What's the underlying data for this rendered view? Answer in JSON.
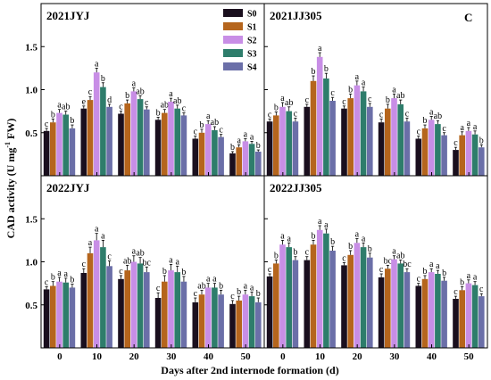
{
  "chart_data": {
    "type": "bar",
    "corner_label": "C",
    "xlabel": "Days after 2nd internode formation (d)",
    "ylabel": "CAD activity (U mg",
    "ylabel_sup": "-1",
    "ylabel_tail": " FW)",
    "ylim": [
      0,
      2.0
    ],
    "yticks": [
      "0.5",
      "1.0",
      "1.5"
    ],
    "categories": [
      "0",
      "10",
      "20",
      "30",
      "40",
      "50"
    ],
    "series_names": [
      "S0",
      "S1",
      "S2",
      "S3",
      "S4"
    ],
    "series_colors": [
      "#1a0f1e",
      "#b5651d",
      "#c88ee6",
      "#2e7d6b",
      "#6b6fa8"
    ],
    "legend_position": "top-right of first panel",
    "panels": [
      {
        "title": "2021JYJ",
        "values": [
          [
            0.52,
            0.78,
            0.72,
            0.65,
            0.43,
            0.26
          ],
          [
            0.62,
            0.88,
            0.84,
            0.73,
            0.5,
            0.33
          ],
          [
            0.73,
            1.2,
            0.98,
            0.86,
            0.6,
            0.4
          ],
          [
            0.71,
            1.03,
            0.89,
            0.78,
            0.53,
            0.37
          ],
          [
            0.55,
            0.8,
            0.77,
            0.7,
            0.45,
            0.28
          ]
        ],
        "errors": [
          [
            0.03,
            0.03,
            0.03,
            0.03,
            0.03,
            0.02
          ],
          [
            0.04,
            0.04,
            0.04,
            0.04,
            0.04,
            0.03
          ],
          [
            0.04,
            0.05,
            0.04,
            0.04,
            0.04,
            0.03
          ],
          [
            0.04,
            0.05,
            0.04,
            0.04,
            0.04,
            0.03
          ],
          [
            0.04,
            0.03,
            0.03,
            0.03,
            0.03,
            0.02
          ]
        ],
        "letters": [
          [
            "c",
            "e",
            "c",
            "b",
            "c",
            "b"
          ],
          [
            "b",
            "c",
            "b",
            "ab",
            "b",
            "a"
          ],
          [
            "a",
            "a",
            "a",
            "a",
            "a",
            "a"
          ],
          [
            "ab",
            "b",
            "ab",
            "ab",
            "ab",
            "a"
          ],
          [
            "b",
            "d",
            "c",
            "c",
            "c",
            "b"
          ]
        ]
      },
      {
        "title": "2021JJ305",
        "values": [
          [
            0.63,
            0.8,
            0.78,
            0.62,
            0.43,
            0.3
          ],
          [
            0.7,
            1.1,
            0.9,
            0.78,
            0.55,
            0.47
          ],
          [
            0.8,
            1.38,
            1.05,
            0.9,
            0.65,
            0.52
          ],
          [
            0.75,
            1.13,
            0.98,
            0.83,
            0.6,
            0.48
          ],
          [
            0.63,
            0.87,
            0.8,
            0.63,
            0.47,
            0.33
          ]
        ],
        "errors": [
          [
            0.03,
            0.03,
            0.03,
            0.04,
            0.03,
            0.03
          ],
          [
            0.04,
            0.06,
            0.05,
            0.05,
            0.04,
            0.04
          ],
          [
            0.05,
            0.05,
            0.05,
            0.05,
            0.04,
            0.04
          ],
          [
            0.05,
            0.06,
            0.05,
            0.05,
            0.04,
            0.04
          ],
          [
            0.04,
            0.04,
            0.04,
            0.04,
            0.03,
            0.03
          ]
        ],
        "letters": [
          [
            "c",
            "c",
            "c",
            "c",
            "c",
            "c"
          ],
          [
            "b",
            "b",
            "b",
            "b",
            "b",
            "a"
          ],
          [
            "a",
            "a",
            "a",
            "a",
            "a",
            "a"
          ],
          [
            "ab",
            "b",
            "a",
            "ab",
            "ab",
            "a"
          ],
          [
            "c",
            "c",
            "c",
            "c",
            "c",
            "b"
          ]
        ]
      },
      {
        "title": "2022JYJ",
        "values": [
          [
            0.68,
            0.87,
            0.8,
            0.58,
            0.53,
            0.51
          ],
          [
            0.72,
            1.1,
            0.9,
            0.77,
            0.62,
            0.55
          ],
          [
            0.77,
            1.25,
            1.0,
            0.9,
            0.7,
            0.62
          ],
          [
            0.76,
            1.17,
            0.98,
            0.88,
            0.7,
            0.6
          ],
          [
            0.7,
            0.95,
            0.88,
            0.77,
            0.62,
            0.53
          ]
        ],
        "errors": [
          [
            0.03,
            0.05,
            0.04,
            0.06,
            0.05,
            0.04
          ],
          [
            0.05,
            0.07,
            0.06,
            0.07,
            0.05,
            0.05
          ],
          [
            0.05,
            0.08,
            0.07,
            0.07,
            0.05,
            0.05
          ],
          [
            0.05,
            0.08,
            0.07,
            0.07,
            0.05,
            0.05
          ],
          [
            0.04,
            0.06,
            0.06,
            0.06,
            0.05,
            0.05
          ]
        ],
        "letters": [
          [
            "c",
            "c",
            "c",
            "c",
            "c",
            "c"
          ],
          [
            "b",
            "a",
            "ab",
            "b",
            "ab",
            "b"
          ],
          [
            "a",
            "a",
            "a",
            "a",
            "a",
            "a"
          ],
          [
            "a",
            "a",
            "ab",
            "a",
            "a",
            "a"
          ],
          [
            "b",
            "c",
            "bc",
            "b",
            "b",
            "b"
          ]
        ]
      },
      {
        "title": "2022JJ305",
        "values": [
          [
            0.83,
            1.02,
            0.96,
            0.82,
            0.72,
            0.57
          ],
          [
            0.98,
            1.2,
            1.08,
            0.92,
            0.8,
            0.67
          ],
          [
            1.2,
            1.37,
            1.22,
            1.03,
            0.88,
            0.75
          ],
          [
            1.17,
            1.33,
            1.17,
            0.98,
            0.86,
            0.73
          ],
          [
            1.02,
            1.13,
            1.05,
            0.88,
            0.78,
            0.6
          ]
        ],
        "errors": [
          [
            0.03,
            0.04,
            0.03,
            0.04,
            0.03,
            0.03
          ],
          [
            0.04,
            0.05,
            0.05,
            0.04,
            0.04,
            0.04
          ],
          [
            0.05,
            0.05,
            0.05,
            0.04,
            0.04,
            0.04
          ],
          [
            0.05,
            0.05,
            0.05,
            0.04,
            0.04,
            0.04
          ],
          [
            0.04,
            0.05,
            0.05,
            0.04,
            0.04,
            0.03
          ]
        ],
        "letters": [
          [
            "c",
            "c",
            "c",
            "c",
            "c",
            "c"
          ],
          [
            "b",
            "b",
            "b",
            "bc",
            "b",
            "b"
          ],
          [
            "a",
            "a",
            "a",
            "a",
            "a",
            "a"
          ],
          [
            "a",
            "a",
            "a",
            "ab",
            "a",
            "a"
          ],
          [
            "b",
            "b",
            "b",
            "bc",
            "b",
            "c"
          ]
        ]
      }
    ]
  }
}
